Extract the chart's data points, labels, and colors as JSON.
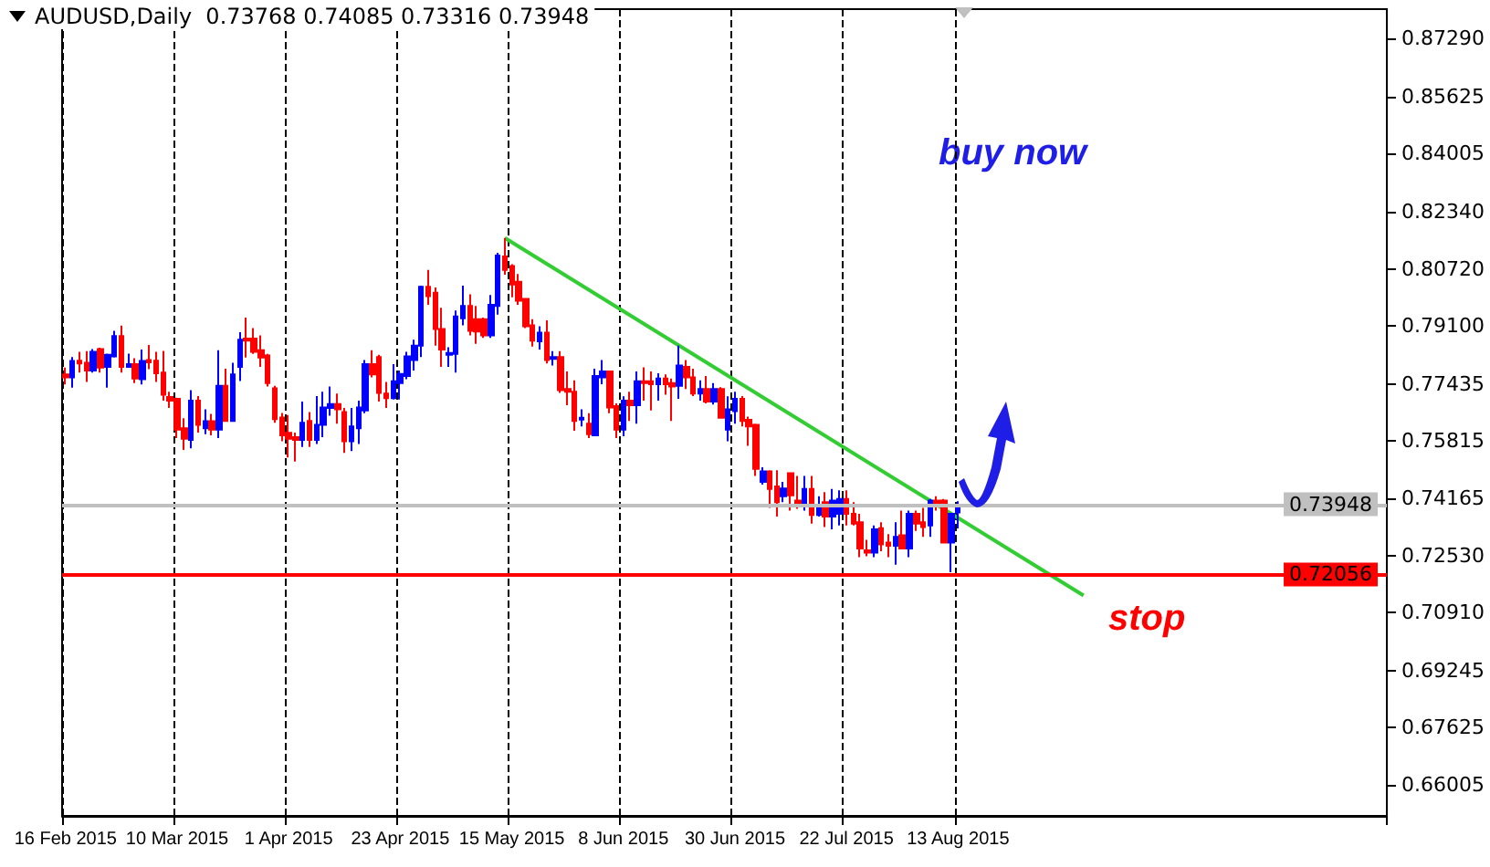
{
  "chart_data": {
    "type": "candlestick",
    "title": "AUDUSD,Daily  0.73768 0.74085 0.73316 0.73948",
    "categories": [
      "16 Feb 2015",
      null,
      null,
      null,
      null,
      null,
      null,
      null,
      null,
      null,
      null,
      null,
      null,
      null,
      null,
      null,
      "10 Mar 2015",
      null,
      null,
      null,
      null,
      null,
      null,
      null,
      null,
      null,
      null,
      null,
      null,
      null,
      null,
      null,
      "1 Apr 2015",
      null,
      null,
      null,
      null,
      null,
      null,
      null,
      null,
      null,
      null,
      null,
      null,
      null,
      null,
      null,
      "23 Apr 2015",
      null,
      null,
      null,
      null,
      null,
      null,
      null,
      null,
      null,
      null,
      null,
      null,
      null,
      null,
      null,
      "15 May 2015",
      null,
      null,
      null,
      null,
      null,
      null,
      null,
      null,
      null,
      null,
      null,
      null,
      null,
      null,
      null,
      "8 Jun 2015",
      null,
      null,
      null,
      null,
      null,
      null,
      null,
      null,
      null,
      null,
      null,
      null,
      null,
      null,
      null,
      "30 Jun 2015",
      null,
      null,
      null,
      null,
      null,
      null,
      null,
      null,
      null,
      null,
      null,
      null,
      null,
      null,
      null,
      "22 Jul 2015",
      null,
      null,
      null,
      null,
      null,
      null,
      null,
      null,
      null,
      null,
      null,
      null,
      null,
      null,
      null,
      "13 Aug 2015",
      null,
      null,
      null,
      null,
      null,
      null,
      null,
      null,
      null,
      null,
      null,
      null,
      null,
      null,
      null,
      null,
      null,
      null,
      null,
      null,
      null,
      null,
      null,
      null,
      null,
      null,
      null,
      null,
      null,
      null,
      null,
      null,
      null,
      null,
      null,
      null,
      null,
      null,
      null,
      null,
      null,
      null,
      null,
      null,
      null,
      null,
      null,
      null,
      null,
      null,
      null,
      null,
      null,
      null,
      null,
      null,
      null,
      null,
      null,
      null,
      null
    ],
    "series": [
      {
        "type": "candlestick",
        "ohlc": [
          [
            0.7771,
            0.779,
            0.7742,
            0.7762
          ],
          [
            0.7762,
            0.782,
            0.7733,
            0.7809
          ],
          [
            0.781,
            0.7835,
            0.7776,
            0.7802
          ],
          [
            0.7804,
            0.7837,
            0.7749,
            0.7782
          ],
          [
            0.7782,
            0.7843,
            0.7776,
            0.7835
          ],
          [
            0.7843,
            0.7847,
            0.7776,
            0.779
          ],
          [
            0.7792,
            0.783,
            0.7733,
            0.7827
          ],
          [
            0.7822,
            0.7895,
            0.7819,
            0.788
          ],
          [
            0.788,
            0.791,
            0.7776,
            0.7792
          ],
          [
            0.7792,
            0.783,
            0.7792,
            0.78
          ],
          [
            0.78,
            0.7817,
            0.7746,
            0.7759
          ],
          [
            0.7757,
            0.7842,
            0.7742,
            0.7809
          ],
          [
            0.7812,
            0.7855,
            0.7786,
            0.7805
          ],
          [
            0.781,
            0.7835,
            0.7749,
            0.7774
          ],
          [
            0.7776,
            0.7838,
            0.7696,
            0.7713
          ],
          [
            0.7706,
            0.7721,
            0.7675,
            0.7696
          ],
          [
            0.7701,
            0.7704,
            0.7589,
            0.7613
          ],
          [
            0.7617,
            0.7646,
            0.7555,
            0.7587
          ],
          [
            0.7584,
            0.7726,
            0.756,
            0.7696
          ],
          [
            0.7696,
            0.7709,
            0.7605,
            0.7627
          ],
          [
            0.7617,
            0.7671,
            0.76,
            0.7637
          ],
          [
            0.7637,
            0.7658,
            0.7597,
            0.7613
          ],
          [
            0.7613,
            0.784,
            0.7589,
            0.7738
          ],
          [
            0.7738,
            0.7787,
            0.7638,
            0.7638
          ],
          [
            0.7638,
            0.7804,
            0.7638,
            0.7771
          ],
          [
            0.7792,
            0.7891,
            0.7752,
            0.787
          ],
          [
            0.7873,
            0.7933,
            0.7819,
            0.7867
          ],
          [
            0.7873,
            0.7903,
            0.7829,
            0.7835
          ],
          [
            0.784,
            0.7882,
            0.7792,
            0.7819
          ],
          [
            0.7825,
            0.7829,
            0.7736,
            0.7746
          ],
          [
            0.7731,
            0.7738,
            0.7633,
            0.7643
          ],
          [
            0.7648,
            0.7661,
            0.758,
            0.7597
          ],
          [
            0.7604,
            0.7655,
            0.7534,
            0.7587
          ],
          [
            0.7592,
            0.7605,
            0.7522,
            0.7584
          ],
          [
            0.7584,
            0.7693,
            0.7564,
            0.7633
          ],
          [
            0.7638,
            0.7663,
            0.7564,
            0.7584
          ],
          [
            0.7584,
            0.7709,
            0.7572,
            0.7627
          ],
          [
            0.7627,
            0.7721,
            0.7592,
            0.7676
          ],
          [
            0.7675,
            0.7736,
            0.7653,
            0.7686
          ],
          [
            0.7686,
            0.7716,
            0.763,
            0.7671
          ],
          [
            0.7663,
            0.7675,
            0.7547,
            0.758
          ],
          [
            0.758,
            0.7675,
            0.7552,
            0.7622
          ],
          [
            0.7617,
            0.7696,
            0.7572,
            0.7676
          ],
          [
            0.7668,
            0.7812,
            0.766,
            0.78
          ],
          [
            0.78,
            0.784,
            0.7762,
            0.7771
          ],
          [
            0.782,
            0.7827,
            0.7693,
            0.7718
          ],
          [
            0.7716,
            0.7749,
            0.7675,
            0.7703
          ],
          [
            0.7703,
            0.78,
            0.7699,
            0.7751
          ],
          [
            0.7746,
            0.7782,
            0.7699,
            0.7772
          ],
          [
            0.7766,
            0.7835,
            0.7757,
            0.7822
          ],
          [
            0.7812,
            0.787,
            0.7782,
            0.7853
          ],
          [
            0.7853,
            0.8024,
            0.782,
            0.8021
          ],
          [
            0.8021,
            0.8069,
            0.7969,
            0.7994
          ],
          [
            0.8004,
            0.8019,
            0.7853,
            0.79
          ],
          [
            0.79,
            0.7961,
            0.7792,
            0.7842
          ],
          [
            0.7827,
            0.7848,
            0.7792,
            0.7832
          ],
          [
            0.7829,
            0.7953,
            0.7776,
            0.7936
          ],
          [
            0.7931,
            0.8024,
            0.7911,
            0.7966
          ],
          [
            0.7966,
            0.7999,
            0.7882,
            0.7895
          ],
          [
            0.7928,
            0.7966,
            0.7858,
            0.7893
          ],
          [
            0.7928,
            0.7933,
            0.7875,
            0.7882
          ],
          [
            0.7882,
            0.7997,
            0.7875,
            0.7969
          ],
          [
            0.7966,
            0.8118,
            0.7941,
            0.811
          ],
          [
            0.8107,
            0.816,
            0.8055,
            0.8069
          ],
          [
            0.808,
            0.8085,
            0.7991,
            0.8027
          ],
          [
            0.8035,
            0.8057,
            0.7969,
            0.7981
          ],
          [
            0.7986,
            0.7986,
            0.7903,
            0.7908
          ],
          [
            0.7911,
            0.7928,
            0.785,
            0.7867
          ],
          [
            0.7865,
            0.7908,
            0.7842,
            0.789
          ],
          [
            0.789,
            0.7925,
            0.7802,
            0.7812
          ],
          [
            0.7815,
            0.7837,
            0.7796,
            0.782
          ],
          [
            0.782,
            0.7837,
            0.7718,
            0.7726
          ],
          [
            0.7729,
            0.7779,
            0.7683,
            0.7721
          ],
          [
            0.7721,
            0.7754,
            0.761,
            0.7638
          ],
          [
            0.7642,
            0.7671,
            0.7622,
            0.7647
          ],
          [
            0.763,
            0.766,
            0.7589,
            0.76
          ],
          [
            0.7597,
            0.7787,
            0.7594,
            0.7766
          ],
          [
            0.7762,
            0.7812,
            0.7743,
            0.7779
          ],
          [
            0.7779,
            0.7782,
            0.766,
            0.7676
          ],
          [
            0.768,
            0.7688,
            0.7589,
            0.7613
          ],
          [
            0.7613,
            0.7708,
            0.7594,
            0.7696
          ],
          [
            0.7696,
            0.7721,
            0.7638,
            0.7683
          ],
          [
            0.7683,
            0.7779,
            0.763,
            0.7751
          ],
          [
            0.7751,
            0.7791,
            0.7696,
            0.7746
          ],
          [
            0.7751,
            0.7779,
            0.7668,
            0.7743
          ],
          [
            0.7743,
            0.7774,
            0.7696,
            0.7759
          ],
          [
            0.7759,
            0.7771,
            0.7713,
            0.7743
          ],
          [
            0.7746,
            0.7759,
            0.7638,
            0.7736
          ],
          [
            0.7738,
            0.7853,
            0.7701,
            0.7796
          ],
          [
            0.7792,
            0.7812,
            0.7729,
            0.7762
          ],
          [
            0.7762,
            0.7787,
            0.7709,
            0.7716
          ],
          [
            0.7716,
            0.7754,
            0.7696,
            0.7729
          ],
          [
            0.7729,
            0.7766,
            0.7688,
            0.7693
          ],
          [
            0.7693,
            0.7746,
            0.7685,
            0.7729
          ],
          [
            0.7729,
            0.7734,
            0.7647,
            0.7647
          ],
          [
            0.7613,
            0.7708,
            0.758,
            0.7671
          ],
          [
            0.7666,
            0.7721,
            0.763,
            0.7701
          ],
          [
            0.7701,
            0.7709,
            0.7622,
            0.7638
          ],
          [
            0.7641,
            0.765,
            0.7567,
            0.7622
          ],
          [
            0.7627,
            0.763,
            0.7481,
            0.7501
          ],
          [
            0.7464,
            0.7506,
            0.7456,
            0.7494
          ],
          [
            0.7494,
            0.7497,
            0.739,
            0.7444
          ],
          [
            0.7451,
            0.7497,
            0.7365,
            0.7406
          ],
          [
            0.7423,
            0.7464,
            0.7406,
            0.7445
          ],
          [
            0.7489,
            0.7489,
            0.7382,
            0.7426
          ],
          [
            0.7411,
            0.7481,
            0.7387,
            0.7398
          ],
          [
            0.7398,
            0.7481,
            0.7382,
            0.7444
          ],
          [
            0.7444,
            0.7481,
            0.7345,
            0.737
          ],
          [
            0.737,
            0.7423,
            0.7365,
            0.7398
          ],
          [
            0.7406,
            0.7435,
            0.7335,
            0.7365
          ],
          [
            0.7365,
            0.7444,
            0.7329,
            0.7411
          ],
          [
            0.7373,
            0.744,
            0.734,
            0.7415
          ],
          [
            0.7415,
            0.744,
            0.734,
            0.7373
          ],
          [
            0.7373,
            0.7406,
            0.734,
            0.7345
          ],
          [
            0.7349,
            0.7373,
            0.7249,
            0.7274
          ],
          [
            0.7269,
            0.7299,
            0.7252,
            0.7262
          ],
          [
            0.7262,
            0.734,
            0.7249,
            0.7329
          ],
          [
            0.7332,
            0.7349,
            0.7266,
            0.7286
          ],
          [
            0.7291,
            0.7315,
            0.7249,
            0.7282
          ],
          [
            0.7282,
            0.7349,
            0.7228,
            0.7307
          ],
          [
            0.7312,
            0.7382,
            0.7274,
            0.7274
          ],
          [
            0.7274,
            0.7382,
            0.7249,
            0.7373
          ],
          [
            0.7373,
            0.7382,
            0.7324,
            0.7345
          ],
          [
            0.7349,
            0.739,
            0.7307,
            0.7335
          ],
          [
            0.734,
            0.7415,
            0.7307,
            0.7411
          ],
          [
            0.7411,
            0.7423,
            0.7382,
            0.7398
          ],
          [
            0.7411,
            0.7415,
            0.7291,
            0.7291
          ],
          [
            0.7291,
            0.7373,
            0.7206,
            0.7373
          ],
          [
            0.73768,
            0.74085,
            0.73316,
            0.73948
          ],
          null,
          null,
          null,
          null,
          null,
          null,
          null,
          null,
          null,
          null,
          null,
          null,
          null,
          null,
          null,
          null,
          null,
          null,
          null,
          null,
          null,
          null,
          null,
          null,
          null,
          null,
          null,
          null,
          null,
          null,
          null,
          null,
          null,
          null,
          null,
          null,
          null,
          null,
          null,
          null,
          null,
          null,
          null,
          null,
          null,
          null,
          null,
          null,
          null,
          null,
          null,
          null,
          null,
          null,
          null,
          null,
          null,
          null,
          null,
          null,
          null
        ],
        "colors": [
          "#ff0000",
          "#0000ff",
          "#ff0000",
          "#ff0000",
          "#0000ff",
          "#ff0000",
          "#0000ff",
          "#0000ff",
          "#ff0000",
          "#0000ff",
          "#ff0000",
          "#0000ff",
          "#ff0000",
          "#ff0000",
          "#ff0000",
          "#ff0000",
          "#ff0000",
          "#ff0000",
          "#0000ff",
          "#ff0000",
          "#0000ff",
          "#ff0000",
          "#0000ff",
          "#ff0000",
          "#0000ff",
          "#0000ff",
          "#ff0000",
          "#ff0000",
          "#ff0000",
          "#ff0000",
          "#ff0000",
          "#ff0000",
          "#ff0000",
          "#ff0000",
          "#0000ff",
          "#ff0000",
          "#0000ff",
          "#0000ff",
          "#0000ff",
          "#ff0000",
          "#ff0000",
          "#0000ff",
          "#0000ff",
          "#0000ff",
          "#ff0000",
          "#ff0000",
          "#ff0000",
          "#0000ff",
          "#0000ff",
          "#0000ff",
          "#0000ff",
          "#0000ff",
          "#ff0000",
          "#ff0000",
          "#ff0000",
          "#0000ff",
          "#0000ff",
          "#0000ff",
          "#ff0000",
          "#ff0000",
          "#ff0000",
          "#0000ff",
          "#0000ff",
          "#ff0000",
          "#ff0000",
          "#ff0000",
          "#ff0000",
          "#ff0000",
          "#0000ff",
          "#ff0000",
          "#0000ff",
          "#ff0000",
          "#ff0000",
          "#ff0000",
          "#0000ff",
          "#ff0000",
          "#0000ff",
          "#0000ff",
          "#ff0000",
          "#ff0000",
          "#0000ff",
          "#ff0000",
          "#0000ff",
          "#ff0000",
          "#ff0000",
          "#0000ff",
          "#ff0000",
          "#ff0000",
          "#0000ff",
          "#ff0000",
          "#ff0000",
          "#0000ff",
          "#ff0000",
          "#0000ff",
          "#ff0000",
          "#0000ff",
          "#0000ff",
          "#ff0000",
          "#ff0000",
          "#ff0000",
          "#0000ff",
          "#ff0000",
          "#ff0000",
          "#0000ff",
          "#ff0000",
          "#ff0000",
          "#0000ff",
          "#ff0000",
          "#0000ff",
          "#ff0000",
          "#0000ff",
          "#0000ff",
          "#ff0000",
          "#ff0000",
          "#ff0000",
          "#ff0000",
          "#0000ff",
          "#ff0000",
          "#ff0000",
          "#0000ff",
          "#ff0000",
          "#0000ff",
          "#ff0000",
          "#ff0000",
          "#0000ff",
          "#ff0000",
          "#ff0000",
          "#0000ff",
          "#0000ff",
          null,
          null,
          null,
          null,
          null,
          null,
          null,
          null,
          null,
          null,
          null,
          null,
          null,
          null,
          null,
          null,
          null,
          null,
          null,
          null,
          null,
          null,
          null,
          null,
          null,
          null,
          null,
          null,
          null,
          null,
          null,
          null,
          null,
          null,
          null,
          null,
          null,
          null,
          null,
          null,
          null,
          null,
          null,
          null,
          null,
          null,
          null,
          null,
          null,
          null,
          null,
          null,
          null,
          null,
          null,
          null,
          null,
          null,
          null,
          null,
          null
        ]
      },
      {
        "type": "line",
        "color": "#32cd32",
        "values": [
          null,
          null,
          null,
          null,
          null,
          null,
          null,
          null,
          null,
          null,
          null,
          null,
          null,
          null,
          null,
          null,
          null,
          null,
          null,
          null,
          null,
          null,
          null,
          null,
          null,
          null,
          null,
          null,
          null,
          null,
          null,
          null,
          null,
          null,
          null,
          null,
          null,
          null,
          null,
          null,
          null,
          null,
          null,
          null,
          null,
          null,
          null,
          null,
          null,
          null,
          null,
          null,
          null,
          null,
          null,
          null,
          null,
          null,
          null,
          null,
          null,
          null,
          null,
          0.816,
          null,
          null,
          null,
          null,
          null,
          null,
          null,
          null,
          null,
          null,
          null,
          null,
          null,
          null,
          null,
          null,
          null,
          null,
          null,
          null,
          null,
          null,
          null,
          null,
          null,
          null,
          null,
          null,
          null,
          null,
          null,
          null,
          null,
          null,
          null,
          null,
          null,
          null,
          null,
          null,
          null,
          null,
          null,
          null,
          null,
          null,
          null,
          null,
          null,
          null,
          null,
          null,
          null,
          null,
          null,
          null,
          null,
          null,
          null,
          null,
          null,
          null,
          null,
          null,
          null,
          null,
          null,
          null,
          null,
          null,
          null,
          null,
          null,
          null,
          null,
          null,
          null,
          null,
          null,
          null,
          null,
          null,
          0.714,
          null,
          null,
          null,
          null,
          null,
          null,
          null,
          null,
          null,
          null,
          null,
          null,
          null,
          null,
          null,
          null,
          null,
          null,
          null,
          null,
          null,
          null,
          null,
          null,
          null,
          null,
          null,
          null,
          null,
          null,
          null,
          null,
          null,
          null,
          null,
          null,
          null,
          null,
          null,
          null,
          null,
          null,
          null
        ]
      }
    ],
    "marker": "none",
    "ylim": [
      0.6511,
      0.8813
    ],
    "yticks": [
      {
        "value": 0.66005,
        "label": "0.66005"
      },
      {
        "value": 0.67625,
        "label": "0.67625"
      },
      {
        "value": 0.69245,
        "label": "0.69245"
      },
      {
        "value": 0.7091,
        "label": "0.70910"
      },
      {
        "value": 0.7253,
        "label": "0.72530"
      },
      {
        "value": 0.74165,
        "label": "0.74165"
      },
      {
        "value": 0.75815,
        "label": "0.75815"
      },
      {
        "value": 0.77435,
        "label": "0.77435"
      },
      {
        "value": 0.791,
        "label": "0.79100"
      },
      {
        "value": 0.8072,
        "label": "0.80720"
      },
      {
        "value": 0.8234,
        "label": "0.82340"
      },
      {
        "value": 0.84005,
        "label": "0.84005"
      },
      {
        "value": 0.85625,
        "label": "0.85625"
      },
      {
        "value": 0.8729,
        "label": "0.87290"
      }
    ],
    "grid": "x",
    "ref_lines": [
      {
        "axis": "y",
        "value": 0.73948,
        "label": "0.73948",
        "color": "#c0c0c0"
      },
      {
        "axis": "y",
        "value": 0.72056,
        "label": "0.72056",
        "color": "#ff0000"
      }
    ],
    "annotations": [
      "buy now",
      "stop"
    ]
  }
}
